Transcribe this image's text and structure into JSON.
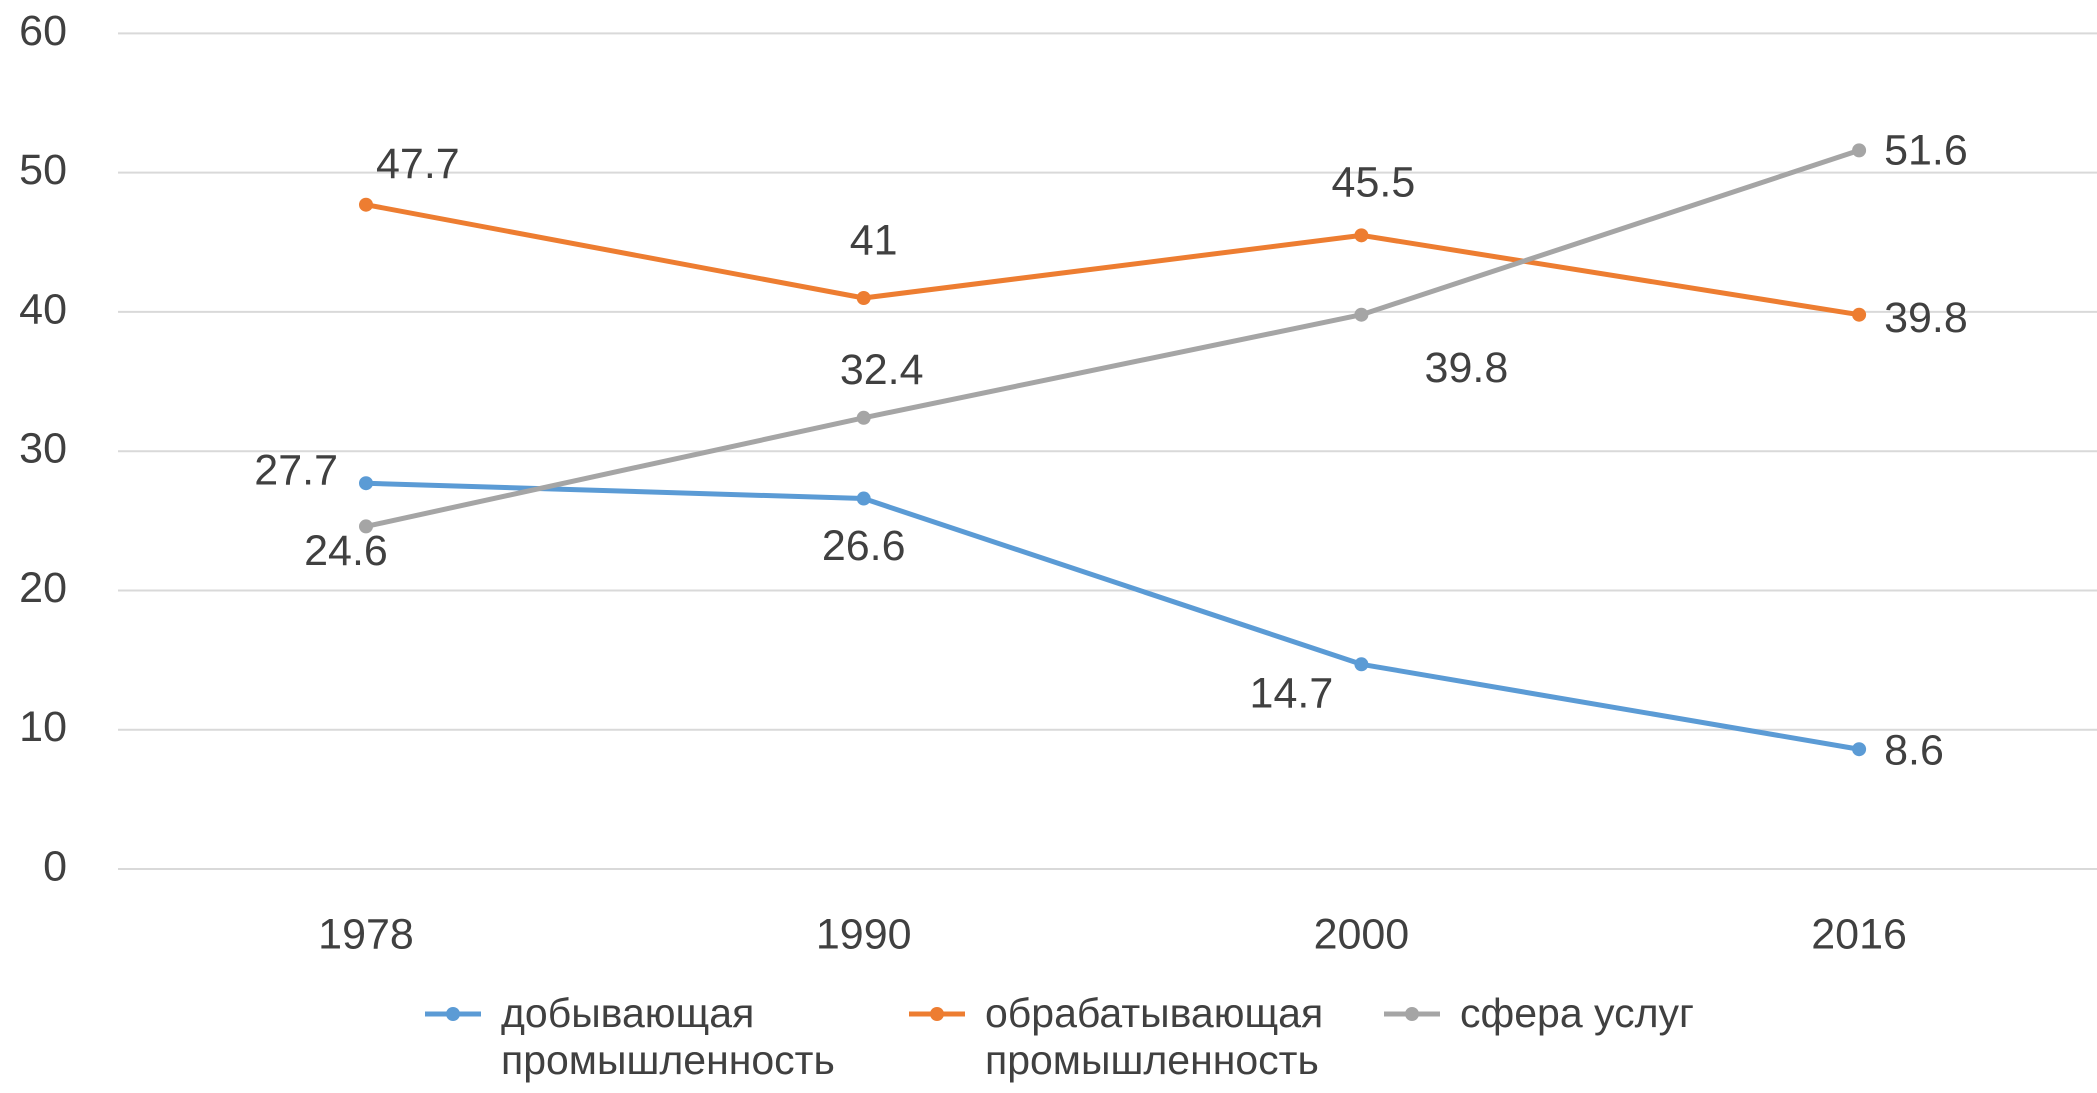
{
  "chart_data": {
    "type": "line",
    "categories": [
      "1978",
      "1990",
      "2000",
      "2016"
    ],
    "series": [
      {
        "name": "добывающая промышленность",
        "color": "#5b9bd5",
        "values": [
          27.7,
          26.6,
          14.7,
          8.6
        ]
      },
      {
        "name": "обрабатывающая промышленность",
        "color": "#ed7d31",
        "values": [
          47.7,
          41,
          45.5,
          39.8
        ]
      },
      {
        "name": "сфера услуг",
        "color": "#a5a5a5",
        "values": [
          24.6,
          32.4,
          39.8,
          51.6
        ]
      }
    ],
    "ylim": [
      0,
      60
    ],
    "yticks": [
      0,
      10,
      20,
      30,
      40,
      50,
      60
    ],
    "grid": true,
    "legend": "bottom"
  }
}
